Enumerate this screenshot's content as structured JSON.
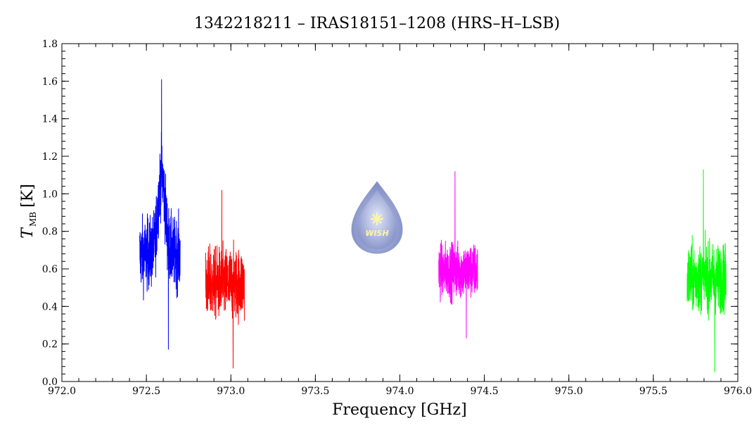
{
  "chart_data": {
    "type": "line",
    "title": "1342218211 – IRAS18151–1208 (HRS–H–LSB)",
    "xlabel": "Frequency [GHz]",
    "ylabel_main": "T",
    "ylabel_sub": "MB",
    "ylabel_unit": "[K]",
    "xlim": [
      972.0,
      976.0
    ],
    "ylim": [
      0.0,
      1.8
    ],
    "x_ticks": [
      "972.0",
      "972.5",
      "973.0",
      "973.5",
      "974.0",
      "974.5",
      "975.0",
      "975.5",
      "976.0"
    ],
    "y_ticks": [
      "0.0",
      "0.2",
      "0.4",
      "0.6",
      "0.8",
      "1.0",
      "1.2",
      "1.4",
      "1.6",
      "1.8"
    ],
    "grid": false,
    "series": [
      {
        "color": "#0000ff",
        "x_range": [
          972.46,
          972.7
        ],
        "center": 0.68,
        "noise": 0.17,
        "min": 0.17,
        "max": 1.61,
        "peak": {
          "x": 972.59,
          "height": 0.42,
          "width": 0.03
        }
      },
      {
        "color": "#ff0000",
        "x_range": [
          972.85,
          973.08
        ],
        "center": 0.52,
        "noise": 0.17,
        "min": 0.07,
        "max": 1.02
      },
      {
        "color": "#ff00ff",
        "x_range": [
          974.23,
          974.46
        ],
        "center": 0.59,
        "noise": 0.13,
        "min": 0.23,
        "max": 1.12
      },
      {
        "color": "#00ff00",
        "x_range": [
          975.7,
          975.93
        ],
        "center": 0.55,
        "noise": 0.16,
        "min": 0.05,
        "max": 1.13
      }
    ],
    "logo_text": "WISH"
  }
}
